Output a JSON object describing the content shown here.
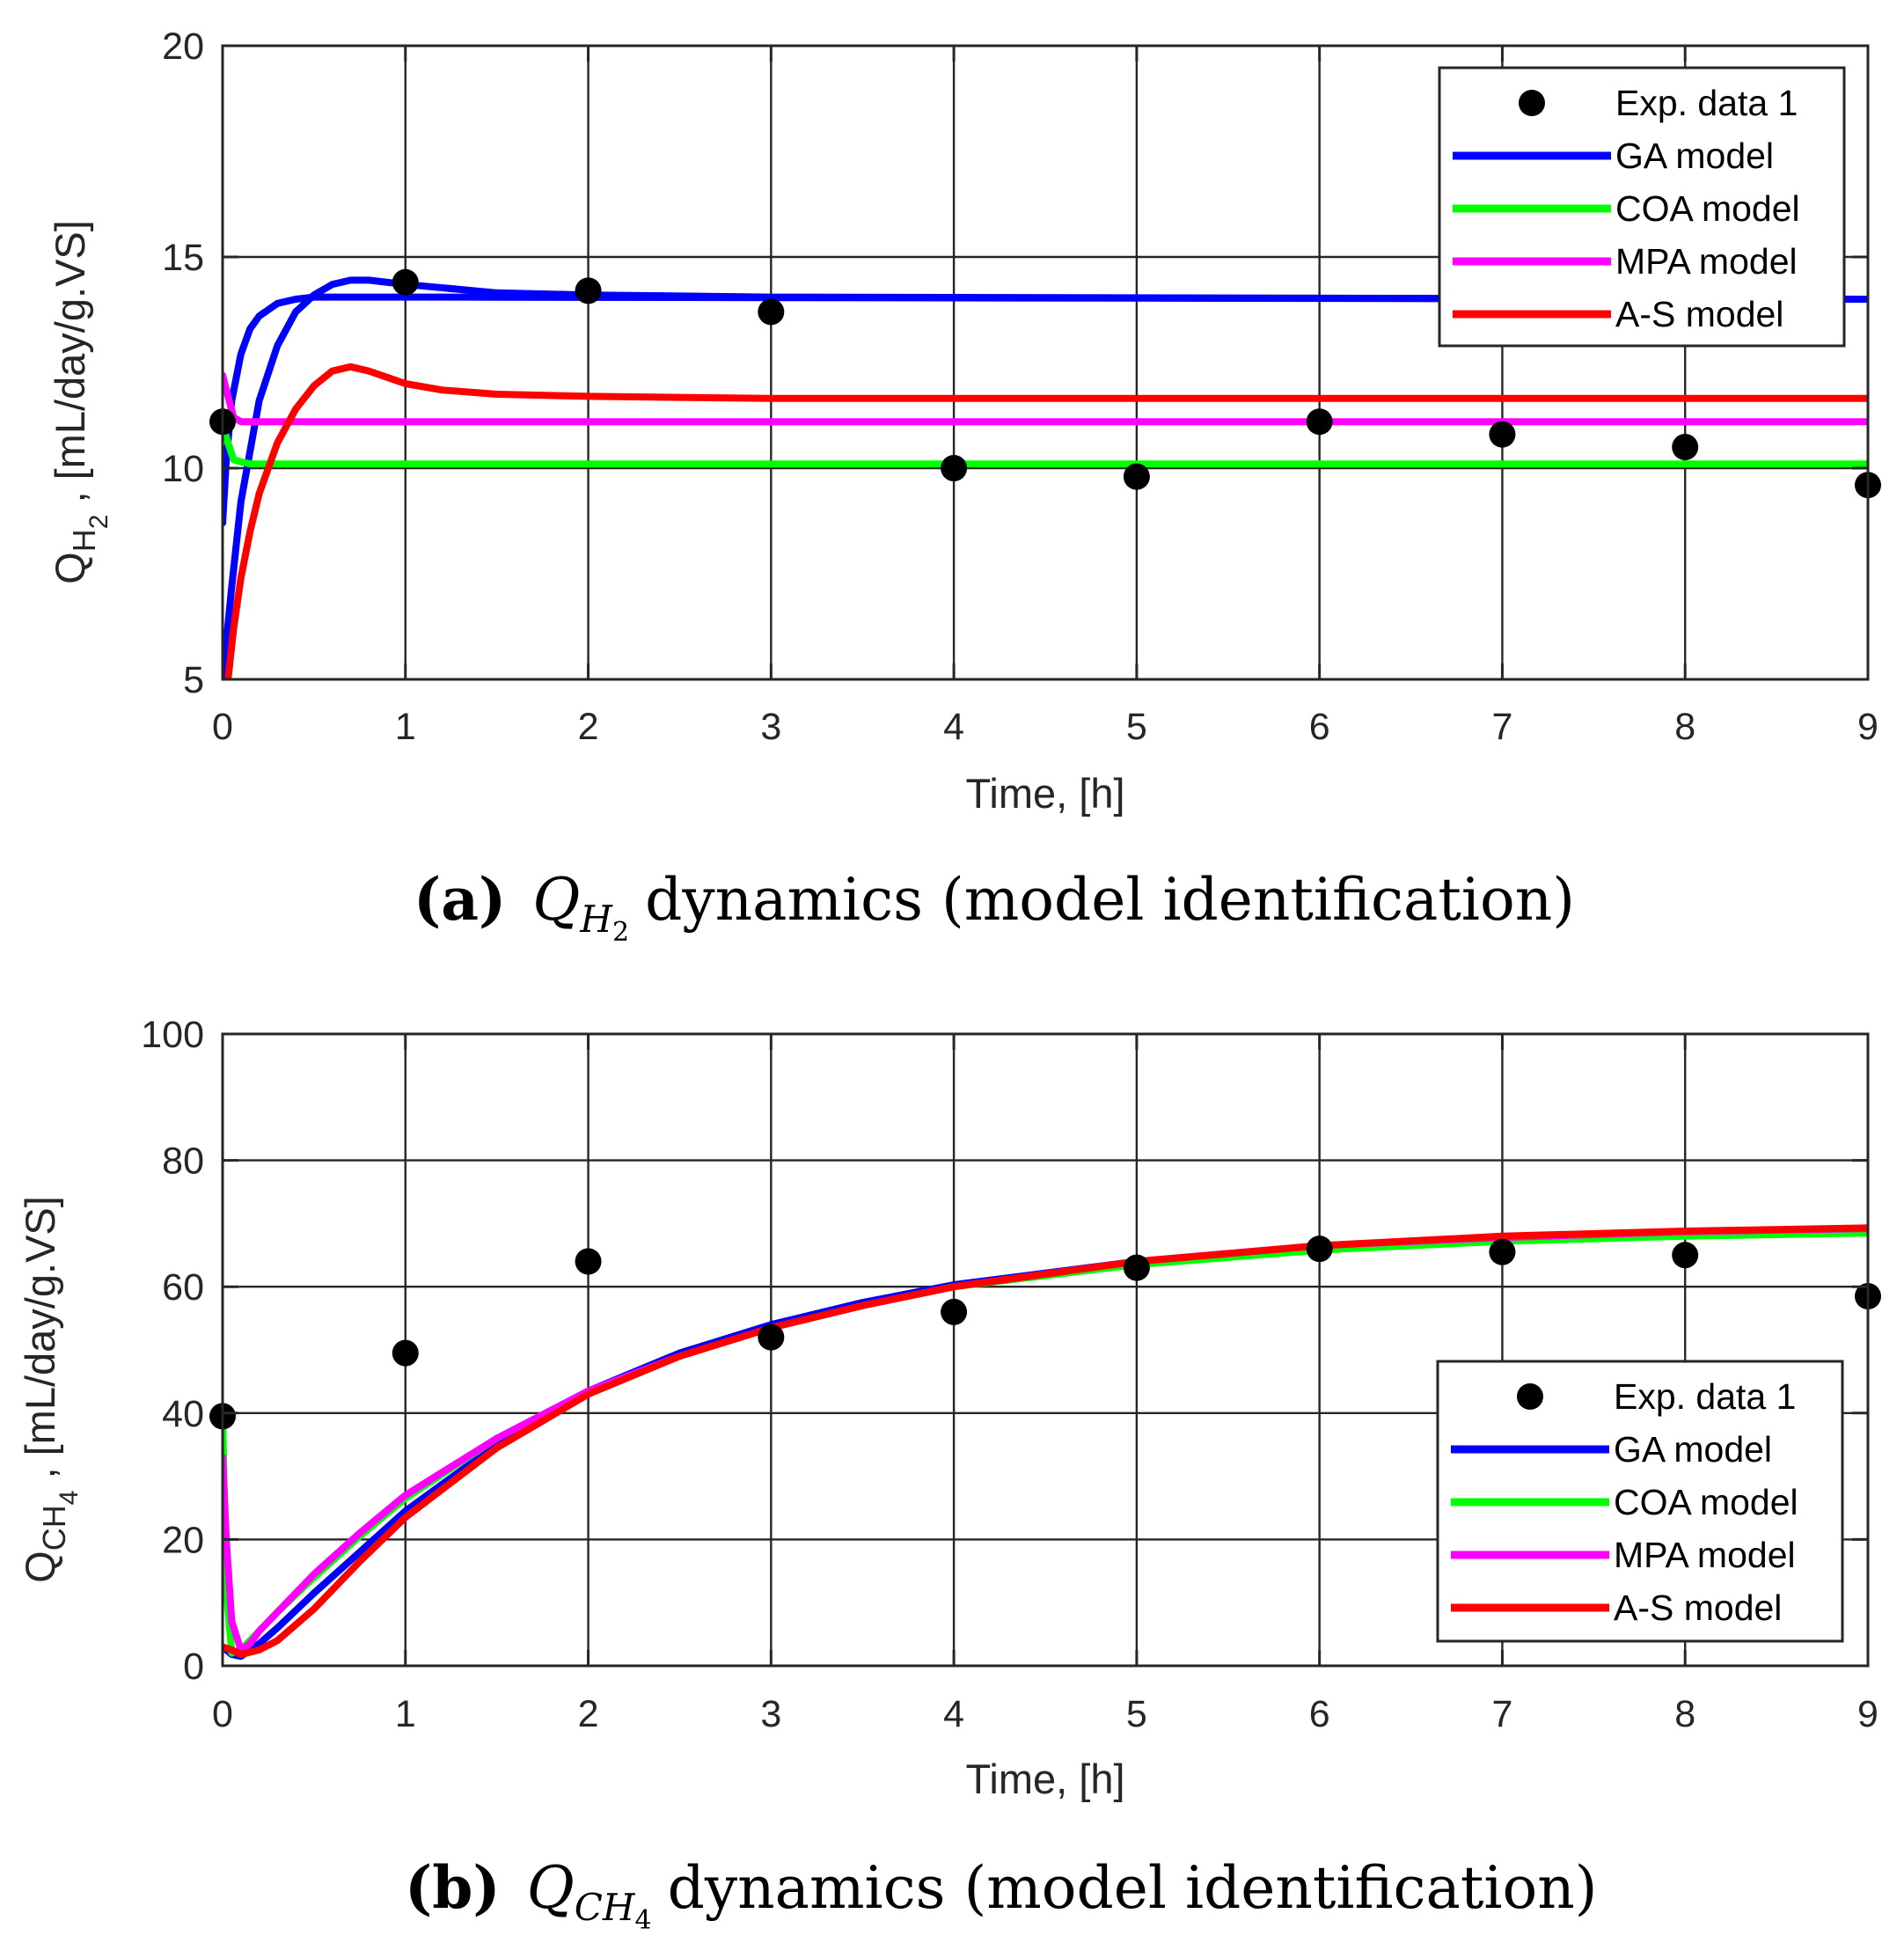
{
  "chart_data": [
    {
      "type": "line",
      "panel": "a",
      "xlabel": "Time, [h]",
      "ylabel": "[mL/day/g.VS]",
      "ylabel_symbol": "Q",
      "ylabel_subscript": "H",
      "ylabel_subsubscript": "2",
      "xlim": [
        0,
        9
      ],
      "ylim": [
        5,
        20
      ],
      "xticks": [
        0,
        1,
        2,
        3,
        4,
        5,
        6,
        7,
        8,
        9
      ],
      "yticks": [
        5,
        10,
        15,
        20
      ],
      "grid": true,
      "legend_position": "top-right",
      "caption": {
        "label": "(a)",
        "math_main": "Q",
        "math_sub": "H",
        "math_subsub": "2",
        "text": "dynamics (model identification)"
      },
      "series": [
        {
          "name": "Exp. data 1",
          "kind": "markers",
          "color": "#000000",
          "x": [
            0,
            1,
            2,
            3,
            4,
            5,
            6,
            7,
            8,
            9
          ],
          "y": [
            11.1,
            14.4,
            14.2,
            13.7,
            10.0,
            9.8,
            11.1,
            10.8,
            10.5,
            9.6
          ]
        },
        {
          "name": "GA model",
          "kind": "line",
          "color": "#0000ff",
          "x": [
            0,
            0.05,
            0.1,
            0.2,
            0.3,
            0.4,
            0.5,
            0.6,
            0.7,
            0.8,
            1.0,
            1.5,
            2,
            3,
            9
          ],
          "y": [
            5.0,
            7.2,
            9.2,
            11.6,
            12.9,
            13.7,
            14.1,
            14.35,
            14.45,
            14.45,
            14.35,
            14.15,
            14.1,
            14.05,
            14.0
          ]
        },
        {
          "name": "GA model",
          "kind": "line",
          "color": "#0000ff",
          "x": [
            0,
            0.02,
            0.05,
            0.1,
            0.15,
            0.2,
            0.3,
            0.4,
            0.5,
            0.7,
            1.0,
            9
          ],
          "y": [
            8.7,
            10.2,
            11.6,
            12.7,
            13.3,
            13.6,
            13.9,
            14.0,
            14.05,
            14.05,
            14.05,
            14.0
          ]
        },
        {
          "name": "COA model",
          "kind": "line",
          "color": "#00ff00",
          "x": [
            0,
            0.03,
            0.06,
            0.1,
            0.15,
            0.3,
            9
          ],
          "y": [
            11.0,
            10.6,
            10.2,
            10.15,
            10.1,
            10.1,
            10.1
          ]
        },
        {
          "name": "MPA model",
          "kind": "line",
          "color": "#ff00ff",
          "x": [
            0,
            0.03,
            0.06,
            0.1,
            0.15,
            0.3,
            9
          ],
          "y": [
            12.2,
            11.7,
            11.2,
            11.1,
            11.1,
            11.1,
            11.1
          ]
        },
        {
          "name": "A-S model",
          "kind": "line",
          "color": "#ff0000",
          "x": [
            0.03,
            0.06,
            0.1,
            0.15,
            0.2,
            0.3,
            0.4,
            0.5,
            0.6,
            0.7,
            0.8,
            0.9,
            1.0,
            1.2,
            1.5,
            2,
            3,
            9
          ],
          "y": [
            5.0,
            6.2,
            7.4,
            8.5,
            9.4,
            10.6,
            11.4,
            11.95,
            12.3,
            12.4,
            12.3,
            12.15,
            12.0,
            11.85,
            11.75,
            11.7,
            11.65,
            11.65
          ]
        }
      ]
    },
    {
      "type": "line",
      "panel": "b",
      "xlabel": "Time, [h]",
      "ylabel": "[mL/day/g.VS]",
      "ylabel_symbol": "Q",
      "ylabel_subscript": "CH",
      "ylabel_subsubscript": "4",
      "xlim": [
        0,
        9
      ],
      "ylim": [
        0,
        100
      ],
      "xticks": [
        0,
        1,
        2,
        3,
        4,
        5,
        6,
        7,
        8,
        9
      ],
      "yticks": [
        0,
        20,
        40,
        60,
        80,
        100
      ],
      "grid": true,
      "legend_position": "bottom-right",
      "caption": {
        "label": "(b)",
        "math_main": "Q",
        "math_sub": "CH",
        "math_subsub": "4",
        "text": "dynamics (model identification)"
      },
      "series": [
        {
          "name": "Exp. data 1",
          "kind": "markers",
          "color": "#000000",
          "x": [
            0,
            1,
            2,
            3,
            4,
            5,
            6,
            7,
            8,
            9
          ],
          "y": [
            39.5,
            49.5,
            64.0,
            52.0,
            56.0,
            63.0,
            66.0,
            65.5,
            65.0,
            58.5
          ]
        },
        {
          "name": "GA model",
          "kind": "line",
          "color": "#0000ff",
          "x": [
            0,
            0.05,
            0.1,
            0.2,
            0.3,
            0.5,
            0.75,
            1,
            1.5,
            2,
            2.5,
            3,
            3.5,
            4,
            5,
            6,
            7,
            8,
            9
          ],
          "y": [
            3.0,
            1.8,
            1.5,
            3.5,
            6.0,
            11.5,
            18.0,
            24.5,
            35.0,
            43.5,
            49.5,
            54.0,
            57.5,
            60.3,
            64.0,
            66.3,
            67.6,
            68.5,
            69.0
          ]
        },
        {
          "name": "COA model",
          "kind": "line",
          "color": "#00ff00",
          "x": [
            0,
            0.02,
            0.05,
            0.1,
            0.2,
            0.3,
            0.5,
            0.75,
            1,
            1.5,
            2,
            2.5,
            3,
            3.5,
            4,
            5,
            6,
            7,
            8,
            9
          ],
          "y": [
            39.5,
            12.0,
            2.0,
            2.5,
            5.5,
            8.5,
            14.0,
            20.5,
            26.5,
            36.0,
            43.5,
            49.0,
            53.5,
            57.0,
            60.0,
            63.5,
            65.8,
            67.2,
            68.0,
            68.5
          ]
        },
        {
          "name": "MPA model",
          "kind": "line",
          "color": "#ff00ff",
          "x": [
            0,
            0.02,
            0.05,
            0.1,
            0.15,
            0.2,
            0.3,
            0.5,
            0.75,
            1,
            1.5,
            2,
            2.5,
            3,
            3.5,
            4,
            5,
            6,
            7,
            8,
            9
          ],
          "y": [
            33.0,
            20.0,
            7.0,
            2.5,
            3.5,
            5.5,
            8.5,
            14.5,
            21.0,
            27.0,
            36.0,
            43.5,
            49.0,
            53.5,
            57.0,
            60.0,
            64.0,
            66.5,
            67.8,
            68.7,
            69.2
          ]
        },
        {
          "name": "A-S model",
          "kind": "line",
          "color": "#ff0000",
          "x": [
            0,
            0.05,
            0.1,
            0.2,
            0.3,
            0.5,
            0.75,
            1,
            1.5,
            2,
            2.5,
            3,
            3.5,
            4,
            5,
            6,
            7,
            8,
            9
          ],
          "y": [
            3.0,
            2.5,
            1.8,
            2.5,
            4.0,
            9.0,
            16.5,
            23.5,
            34.5,
            43.0,
            49.0,
            53.5,
            57.0,
            60.0,
            64.0,
            66.5,
            68.0,
            68.8,
            69.3
          ]
        }
      ]
    }
  ]
}
